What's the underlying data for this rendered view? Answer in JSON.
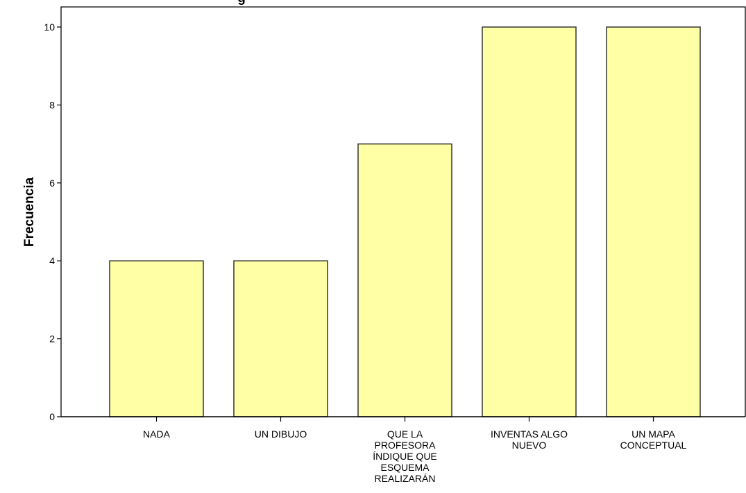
{
  "chart_data": {
    "type": "bar",
    "title_fragment": "g",
    "xlabel": "",
    "ylabel": "Frecuencia",
    "ylim": [
      0,
      10.5
    ],
    "yticks": [
      0,
      2,
      4,
      6,
      8,
      10
    ],
    "yticks_labels": [
      "0",
      "2",
      "4",
      "6",
      "8",
      "10"
    ],
    "categories": [
      "NADA",
      "UN DIBUJO",
      "QUE LA PROFESORA ÍNDIQUE QUE ESQUEMA REALIZARÁN",
      "INVENTAS ALGO NUEVO",
      "UN MAPA CONCEPTUAL"
    ],
    "category_lines": [
      [
        "NADA"
      ],
      [
        "UN DIBUJO"
      ],
      [
        "QUE LA",
        "PROFESORA",
        "ÍNDIQUE QUE",
        "ESQUEMA",
        "REALIZARÁN"
      ],
      [
        "INVENTAS ALGO",
        "NUEVO"
      ],
      [
        "UN MAPA",
        "CONCEPTUAL"
      ]
    ],
    "values": [
      4,
      4,
      7,
      10,
      10
    ],
    "colors": {
      "bar_fill": "#ffffa6",
      "bar_stroke": "#333333",
      "axis": "#000000"
    },
    "grid": false,
    "legend": "none"
  }
}
